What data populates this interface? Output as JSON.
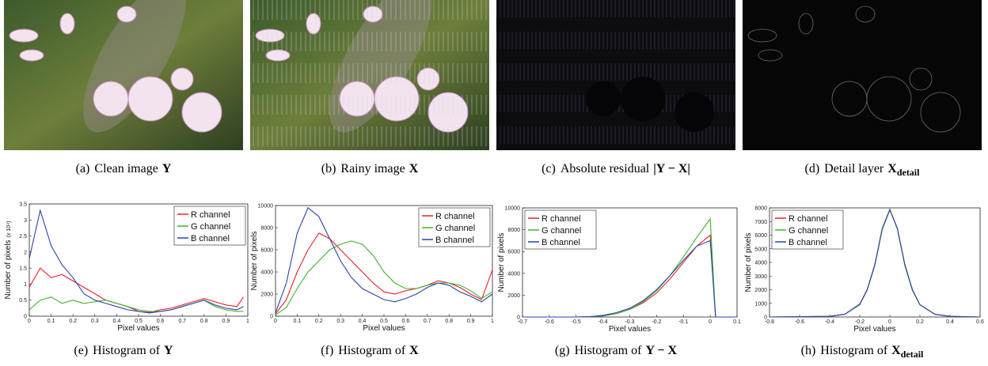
{
  "images": [
    {
      "caption": {
        "label": "(a)",
        "text": "Clean image",
        "math": "Y"
      }
    },
    {
      "caption": {
        "label": "(b)",
        "text": "Rainy image",
        "math": "X"
      }
    },
    {
      "caption": {
        "label": "(c)",
        "text": "Absolute residual",
        "math": "|Y − X|"
      }
    },
    {
      "caption": {
        "label": "(d)",
        "text": "Detail layer",
        "math": "X",
        "sub": "detail"
      }
    }
  ],
  "chart_data": [
    {
      "type": "line",
      "caption": {
        "label": "(e)",
        "text": "Histogram of",
        "math": "Y"
      },
      "xlabel": "Pixel values",
      "ylabel": "Number of pixels",
      "ylabel_unit": "(x 10⁴)",
      "x": [
        0,
        0.05,
        0.1,
        0.15,
        0.2,
        0.25,
        0.3,
        0.35,
        0.4,
        0.45,
        0.5,
        0.55,
        0.6,
        0.65,
        0.7,
        0.75,
        0.8,
        0.85,
        0.9,
        0.95,
        0.98
      ],
      "series": [
        {
          "name": "R channel",
          "color": "#e8202a",
          "values": [
            0.9,
            1.5,
            1.2,
            1.3,
            1.1,
            0.9,
            0.7,
            0.5,
            0.4,
            0.3,
            0.15,
            0.12,
            0.2,
            0.25,
            0.35,
            0.45,
            0.55,
            0.45,
            0.35,
            0.3,
            0.6
          ]
        },
        {
          "name": "G channel",
          "color": "#3cb52b",
          "values": [
            0.2,
            0.5,
            0.6,
            0.4,
            0.5,
            0.4,
            0.45,
            0.5,
            0.4,
            0.3,
            0.2,
            0.15,
            0.15,
            0.2,
            0.3,
            0.4,
            0.5,
            0.3,
            0.2,
            0.15,
            0.15
          ]
        },
        {
          "name": "B channel",
          "color": "#2a44a8",
          "values": [
            1.8,
            3.3,
            2.2,
            1.6,
            1.2,
            0.7,
            0.5,
            0.4,
            0.3,
            0.2,
            0.15,
            0.1,
            0.15,
            0.2,
            0.3,
            0.4,
            0.5,
            0.35,
            0.25,
            0.2,
            0.3
          ]
        }
      ],
      "xlim": [
        0,
        1
      ],
      "xticks": [
        0,
        0.1,
        0.2,
        0.3,
        0.4,
        0.5,
        0.6,
        0.7,
        0.8,
        0.9,
        1
      ],
      "ylim": [
        0,
        3.5
      ],
      "yticks": [
        0,
        0.5,
        1,
        1.5,
        2,
        2.5,
        3,
        3.5
      ],
      "legend": "upper right"
    },
    {
      "type": "line",
      "caption": {
        "label": "(f)",
        "text": "Histogram of",
        "math": "X"
      },
      "xlabel": "Pixel values",
      "ylabel": "Number of pixels",
      "x": [
        0,
        0.05,
        0.1,
        0.15,
        0.2,
        0.25,
        0.3,
        0.35,
        0.4,
        0.45,
        0.5,
        0.55,
        0.6,
        0.65,
        0.7,
        0.75,
        0.8,
        0.85,
        0.9,
        0.95,
        1
      ],
      "series": [
        {
          "name": "R channel",
          "color": "#e8202a",
          "values": [
            200,
            1500,
            4000,
            6000,
            7500,
            7000,
            6000,
            5000,
            4000,
            3000,
            2200,
            2000,
            2300,
            2500,
            2800,
            3200,
            3000,
            2600,
            2000,
            1500,
            4200
          ]
        },
        {
          "name": "G channel",
          "color": "#3cb52b",
          "values": [
            100,
            800,
            2500,
            4000,
            5000,
            6000,
            6500,
            6800,
            6500,
            5500,
            4000,
            3000,
            2500,
            2500,
            2800,
            3000,
            3000,
            2800,
            2300,
            1600,
            2200
          ]
        },
        {
          "name": "B channel",
          "color": "#2a44a8",
          "values": [
            300,
            3000,
            7500,
            9800,
            9000,
            7000,
            5000,
            3500,
            2500,
            2000,
            1500,
            1300,
            1600,
            2000,
            2600,
            3000,
            2800,
            2200,
            1800,
            1300,
            2000
          ]
        }
      ],
      "xlim": [
        0,
        1
      ],
      "xticks": [
        0,
        0.1,
        0.2,
        0.3,
        0.4,
        0.5,
        0.6,
        0.7,
        0.8,
        0.9,
        1
      ],
      "ylim": [
        0,
        10000
      ],
      "yticks": [
        0,
        2000,
        4000,
        6000,
        8000,
        10000
      ],
      "legend": "upper right"
    },
    {
      "type": "line",
      "caption": {
        "label": "(g)",
        "text": "Histogram of",
        "math": "Y − X"
      },
      "xlabel": "Pixel values",
      "ylabel": "Number of pixels",
      "x": [
        -0.7,
        -0.65,
        -0.6,
        -0.55,
        -0.5,
        -0.45,
        -0.4,
        -0.35,
        -0.3,
        -0.25,
        -0.2,
        -0.15,
        -0.1,
        -0.05,
        0,
        0.02,
        0.1
      ],
      "series": [
        {
          "name": "R channel",
          "color": "#e8202a",
          "values": [
            0,
            0,
            0,
            0,
            0,
            20,
            100,
            300,
            700,
            1300,
            2200,
            3500,
            5000,
            6500,
            7500,
            0,
            0
          ]
        },
        {
          "name": "G channel",
          "color": "#3cb52b",
          "values": [
            0,
            0,
            0,
            0,
            0,
            20,
            100,
            300,
            700,
            1400,
            2400,
            3800,
            5500,
            7300,
            9000,
            0,
            0
          ]
        },
        {
          "name": "B channel",
          "color": "#2a44a8",
          "values": [
            0,
            0,
            0,
            0,
            0,
            30,
            150,
            400,
            800,
            1500,
            2500,
            3800,
            5200,
            6500,
            7000,
            0,
            0
          ]
        }
      ],
      "xlim": [
        -0.7,
        0.1
      ],
      "xticks": [
        -0.7,
        -0.6,
        -0.5,
        -0.4,
        -0.3,
        -0.2,
        -0.1,
        0,
        0.1
      ],
      "ylim": [
        0,
        10000
      ],
      "yticks": [
        0,
        2000,
        4000,
        6000,
        8000,
        10000
      ],
      "legend": "upper left"
    },
    {
      "type": "line",
      "caption": {
        "label": "(h)",
        "text": "Histogram of",
        "math": "X",
        "sub": "detail"
      },
      "xlabel": "Pixel values",
      "ylabel": "Number of pixels",
      "x": [
        -0.8,
        -0.4,
        -0.3,
        -0.2,
        -0.15,
        -0.1,
        -0.05,
        0,
        0.05,
        0.1,
        0.15,
        0.2,
        0.3,
        0.4,
        0.6
      ],
      "series": [
        {
          "name": "R channel",
          "color": "#e8202a",
          "values": [
            0,
            50,
            200,
            900,
            2000,
            3800,
            6500,
            7900,
            6500,
            3800,
            2000,
            900,
            200,
            50,
            0
          ]
        },
        {
          "name": "G channel",
          "color": "#3cb52b",
          "values": [
            0,
            50,
            200,
            900,
            2050,
            3850,
            6550,
            7900,
            6450,
            3750,
            1950,
            900,
            200,
            50,
            0
          ]
        },
        {
          "name": "B channel",
          "color": "#2a44a8",
          "values": [
            0,
            50,
            200,
            950,
            2000,
            3800,
            6450,
            7850,
            6500,
            3850,
            2000,
            900,
            200,
            50,
            0
          ]
        }
      ],
      "xlim": [
        -0.8,
        0.6
      ],
      "xticks": [
        -0.8,
        -0.6,
        -0.4,
        -0.2,
        0,
        0.2,
        0.4,
        0.6
      ],
      "ylim": [
        0,
        8000
      ],
      "yticks": [
        0,
        1000,
        2000,
        3000,
        4000,
        5000,
        6000,
        7000,
        8000
      ],
      "legend": "upper left"
    }
  ]
}
